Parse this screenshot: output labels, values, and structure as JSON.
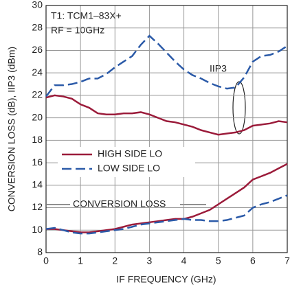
{
  "chart_data": {
    "type": "line",
    "xlabel": "IF FREQUENCY (GHz)",
    "ylabel": "CONVERSION LOSS (dB), IIP3 (dBm)",
    "annotations": {
      "setup": "T1: TCM1–83X+",
      "rf": "RF = 10GHz",
      "iip3": "IIP3",
      "loss": "CONVERSION LOSS"
    },
    "x": [
      0,
      0.25,
      0.5,
      0.75,
      1,
      1.25,
      1.5,
      1.75,
      2,
      2.25,
      2.5,
      2.75,
      3,
      3.25,
      3.5,
      3.75,
      4,
      4.25,
      4.5,
      4.75,
      5,
      5.25,
      5.5,
      5.75,
      6,
      6.25,
      6.5,
      6.75,
      7
    ],
    "series": [
      {
        "name": "HIGH SIDE LO",
        "color": "#9b1b3a",
        "dashed": false,
        "values": [
          21.8,
          22,
          21.9,
          21.7,
          21.2,
          20.9,
          20.4,
          20.3,
          20.3,
          20.4,
          20.4,
          20.5,
          20.3,
          20,
          19.7,
          19.6,
          19.4,
          19.2,
          18.9,
          18.7,
          18.5,
          18.6,
          18.7,
          18.9,
          19.3,
          19.4,
          19.5,
          19.7,
          19.6
        ],
        "loss": [
          10.1,
          10.1,
          10,
          9.9,
          9.8,
          9.8,
          9.9,
          10,
          10.1,
          10.3,
          10.5,
          10.6,
          10.7,
          10.8,
          10.9,
          11,
          11,
          11.2,
          11.5,
          11.8,
          12.3,
          12.8,
          13.3,
          13.8,
          14.5,
          14.8,
          15.1,
          15.5,
          15.9
        ]
      },
      {
        "name": "LOW SIDE LO",
        "color": "#2b5aa8",
        "dashed": true,
        "values": [
          21.9,
          22.9,
          22.9,
          23,
          23.2,
          23.5,
          23.5,
          23.9,
          24.5,
          25,
          25.5,
          26.5,
          27.3,
          26.6,
          25.8,
          25,
          24.3,
          23.8,
          23.5,
          23.1,
          22.8,
          22.6,
          22.7,
          23.6,
          25,
          25.5,
          25.6,
          25.9,
          26.4
        ],
        "loss": [
          10.1,
          10.2,
          10,
          9.8,
          9.7,
          9.7,
          9.8,
          9.9,
          10,
          10.1,
          10.3,
          10.5,
          10.6,
          10.7,
          10.8,
          10.9,
          11,
          10.9,
          10.9,
          10.8,
          10.8,
          10.9,
          11.1,
          11.3,
          12,
          12.3,
          12.5,
          12.8,
          13.1
        ]
      }
    ],
    "xlim": [
      0,
      7
    ],
    "xticks": [
      0,
      1,
      2,
      3,
      4,
      5,
      6,
      7
    ],
    "ylim": [
      8,
      30
    ],
    "yticks": [
      8,
      10,
      12,
      14,
      16,
      18,
      20,
      22,
      24,
      26,
      28,
      30
    ],
    "grid": true
  }
}
